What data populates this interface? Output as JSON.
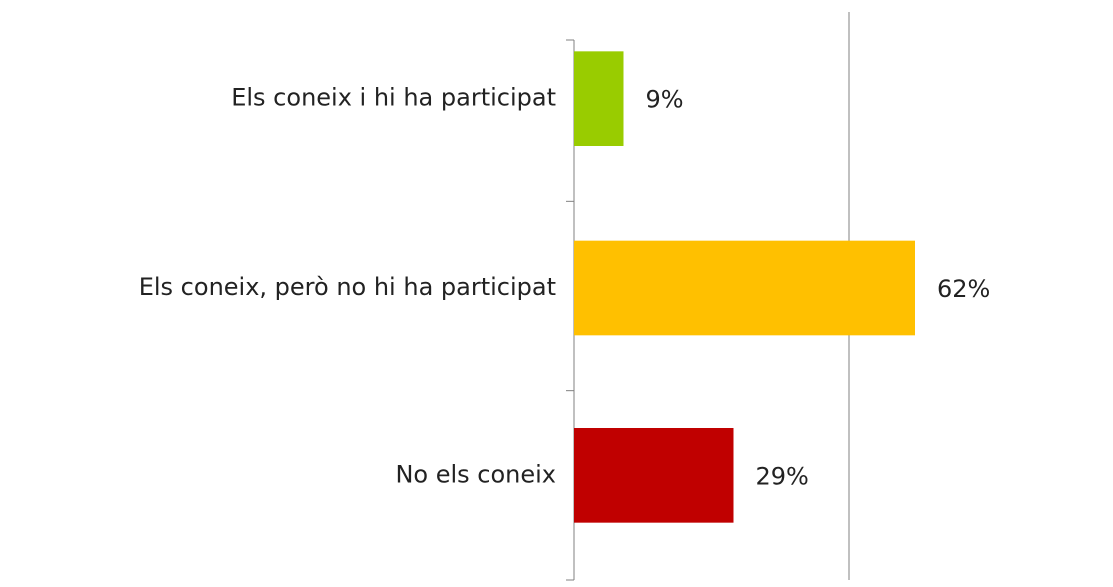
{
  "chart_data": {
    "type": "hbar",
    "categories": [
      "Els coneix i hi ha participat",
      "Els coneix, però no hi ha participat",
      "No els coneix"
    ],
    "values": [
      9,
      62,
      29
    ],
    "value_labels": [
      "9%",
      "62%",
      "29%"
    ],
    "colors": [
      "#99cc00",
      "#ffc000",
      "#c00000"
    ],
    "xlim": [
      0,
      100
    ],
    "xticks": [
      50
    ],
    "grid": true
  }
}
